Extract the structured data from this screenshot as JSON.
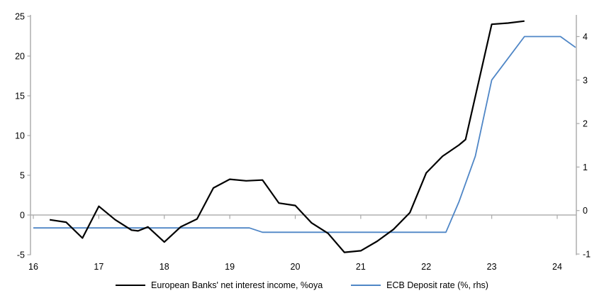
{
  "chart_data": {
    "type": "line",
    "title": "",
    "xlabel": "",
    "ylabel_left": "",
    "ylabel_right": "",
    "grid": false,
    "zero_line": true,
    "legend_position": "bottom",
    "x_axis": {
      "ticks": [
        16,
        17,
        18,
        19,
        20,
        21,
        22,
        23,
        24
      ],
      "range": [
        16,
        24.3
      ]
    },
    "left_axis": {
      "ticks": [
        25,
        20,
        15,
        10,
        5,
        0,
        -5
      ],
      "range": [
        -5,
        25
      ]
    },
    "right_axis": {
      "ticks": [
        4,
        3,
        2,
        1,
        0,
        -1
      ],
      "range": [
        -1,
        4.5
      ]
    },
    "series": [
      {
        "name": "European Banks' net interest income, %oya",
        "axis": "left",
        "color": "#000000",
        "x": [
          16.25,
          16.5,
          16.75,
          17.0,
          17.25,
          17.5,
          17.6,
          17.75,
          18.0,
          18.25,
          18.5,
          18.75,
          19.0,
          19.25,
          19.5,
          19.75,
          20.0,
          20.25,
          20.5,
          20.75,
          21.0,
          21.25,
          21.5,
          21.75,
          22.0,
          22.25,
          22.5,
          22.6,
          23.0,
          23.25,
          23.5
        ],
        "values": [
          -0.6,
          -0.9,
          -2.9,
          1.1,
          -0.6,
          -1.9,
          -2.0,
          -1.5,
          -3.4,
          -1.5,
          -0.5,
          3.4,
          4.5,
          4.3,
          4.4,
          1.5,
          1.2,
          -1.0,
          -2.3,
          -4.7,
          -4.5,
          -3.3,
          -1.8,
          0.3,
          5.3,
          7.4,
          8.8,
          9.5,
          24.0,
          24.15,
          24.4
        ]
      },
      {
        "name": "ECB Deposit rate (%, rhs)",
        "axis": "right",
        "color": "#4F86C6",
        "x": [
          16.0,
          19.3,
          19.5,
          22.3,
          22.5,
          22.75,
          23.0,
          23.25,
          23.5,
          24.05,
          24.28
        ],
        "values": [
          -0.4,
          -0.4,
          -0.5,
          -0.5,
          0.2,
          1.25,
          3.0,
          3.5,
          4.0,
          4.0,
          3.75
        ]
      }
    ]
  },
  "colors": {
    "axis": "#a9a9a9",
    "zero_line": "#b0b0b0",
    "text": "#000000",
    "nii_line": "#000000",
    "ecb_line": "#4F86C6"
  }
}
